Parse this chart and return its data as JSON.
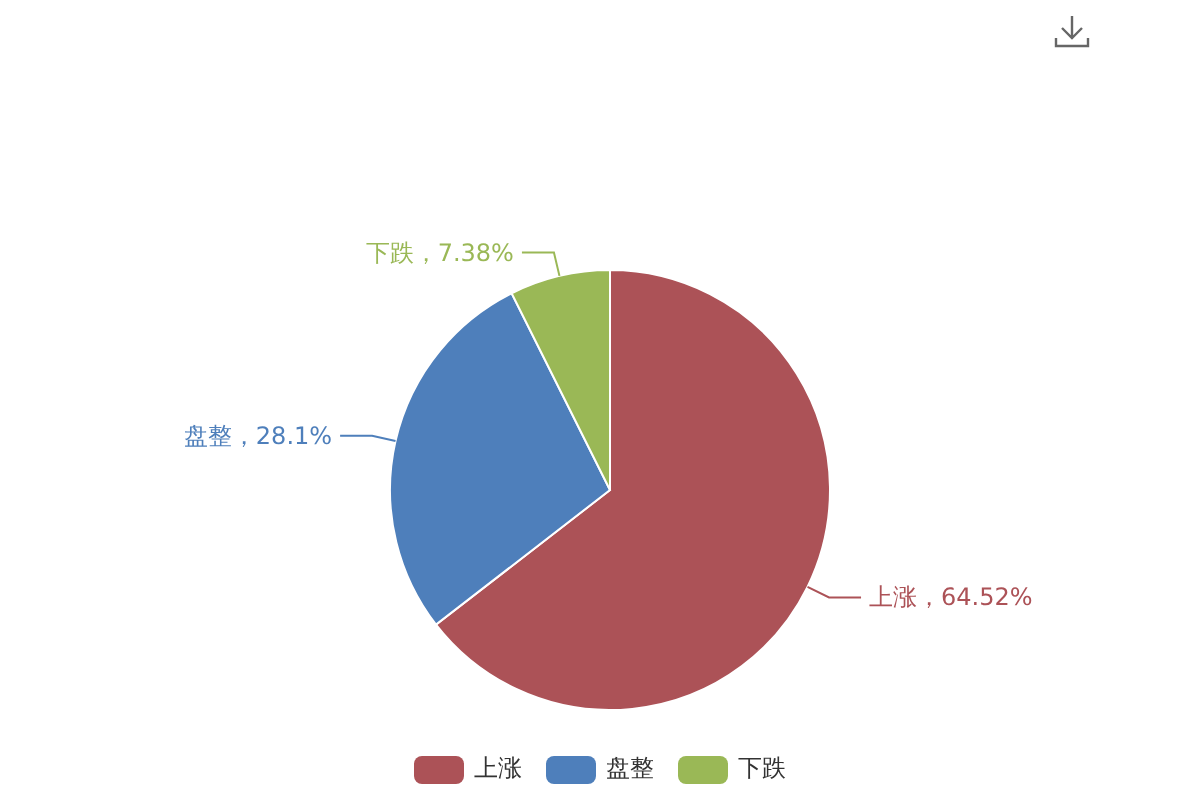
{
  "chart_data": {
    "type": "pie",
    "categories": [
      "上涨",
      "盘整",
      "下跌"
    ],
    "values": [
      64.52,
      28.1,
      7.38
    ],
    "colors": [
      "#ac5257",
      "#4e7fbb",
      "#9ab856"
    ],
    "value_labels": [
      "上涨，64.52%",
      "盘整，28.1%",
      "下跌，7.38%"
    ],
    "legend": "bottom"
  }
}
